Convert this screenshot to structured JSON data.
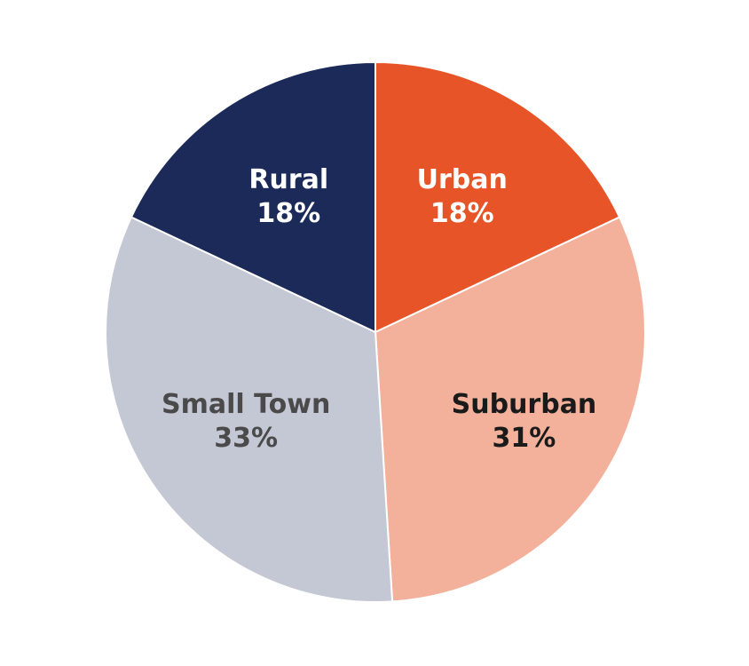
{
  "chart_data": {
    "type": "pie",
    "slices": [
      {
        "label": "Urban",
        "value": 18,
        "value_label": "18%",
        "color": "#E65427",
        "text_color": "#FFFFFF"
      },
      {
        "label": "Suburban",
        "value": 31,
        "value_label": "31%",
        "color": "#F3B19B",
        "text_color": "#1A1A1A"
      },
      {
        "label": "Small Town",
        "value": 33,
        "value_label": "33%",
        "color": "#C4C7D4",
        "text_color": "#4A4A4A"
      },
      {
        "label": "Rural",
        "value": 18,
        "value_label": "18%",
        "color": "#1B2A59",
        "text_color": "#FFFFFF"
      }
    ],
    "start": "12 o'clock",
    "direction": "clockwise",
    "legend": "none"
  }
}
